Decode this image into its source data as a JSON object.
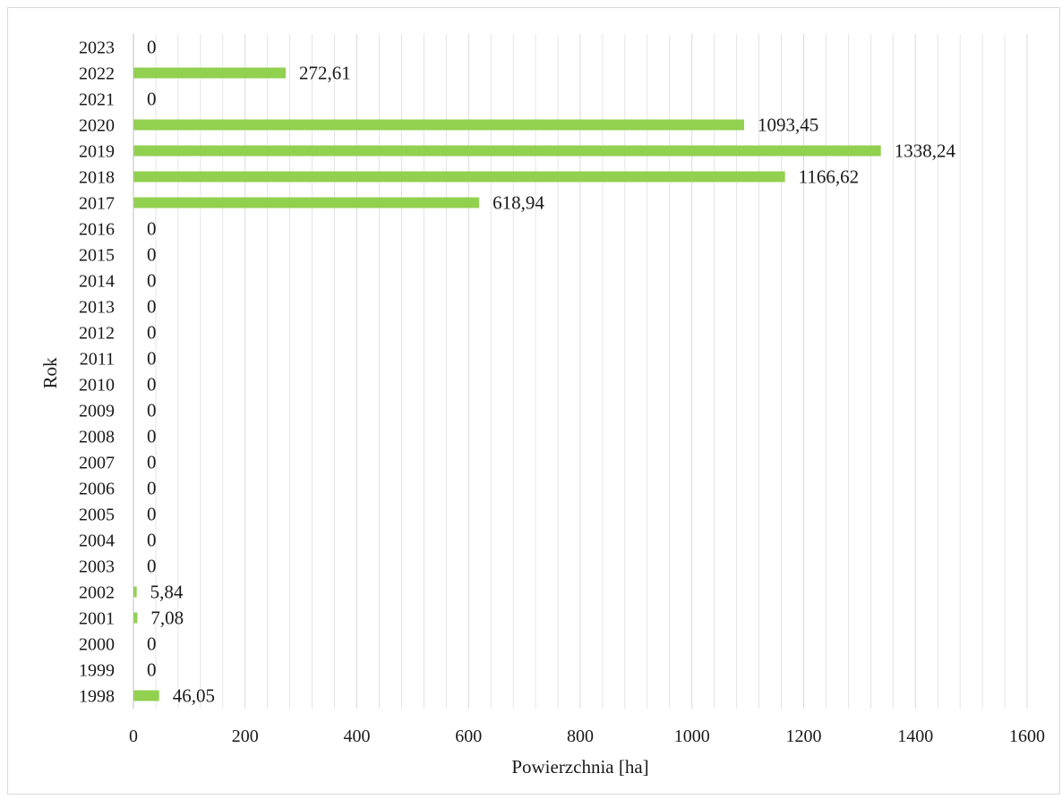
{
  "chart_data": {
    "type": "bar",
    "orientation": "horizontal",
    "categories": [
      "1998",
      "1999",
      "2000",
      "2001",
      "2002",
      "2003",
      "2004",
      "2005",
      "2006",
      "2007",
      "2008",
      "2009",
      "2010",
      "2011",
      "2012",
      "2013",
      "2014",
      "2015",
      "2016",
      "2017",
      "2018",
      "2019",
      "2020",
      "2021",
      "2022",
      "2023"
    ],
    "values": [
      46.05,
      0,
      0,
      7.08,
      5.84,
      0,
      0,
      0,
      0,
      0,
      0,
      0,
      0,
      0,
      0,
      0,
      0,
      0,
      0,
      618.94,
      1166.62,
      1338.24,
      1093.45,
      0,
      272.61,
      0
    ],
    "data_labels": [
      "46,05",
      "0",
      "0",
      "7,08",
      "5,84",
      "0",
      "0",
      "0",
      "0",
      "0",
      "0",
      "0",
      "0",
      "0",
      "0",
      "0",
      "0",
      "0",
      "0",
      "618,94",
      "1166,62",
      "1338,24",
      "1093,45",
      "0",
      "272,61",
      "0"
    ],
    "xlabel": "Powierzchnia [ha]",
    "ylabel": "Rok",
    "xlim": [
      0,
      1600
    ],
    "xticks": [
      0,
      200,
      400,
      600,
      800,
      1000,
      1200,
      1400,
      1600
    ],
    "grid": "vertical major and minor",
    "legend": "none",
    "colors": {
      "bar": "#92d050",
      "grid": "#d9d9d9",
      "axis": "#bfbfbf"
    }
  }
}
